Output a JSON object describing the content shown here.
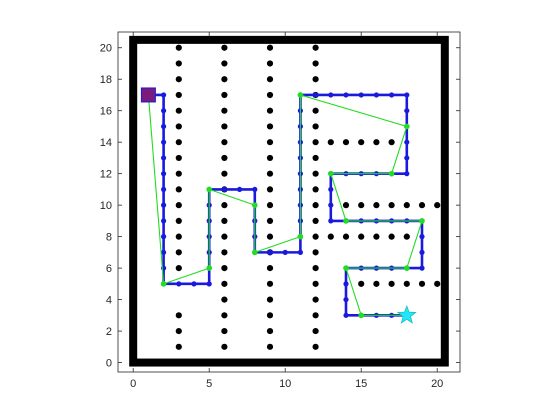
{
  "chart_data": {
    "type": "scatter",
    "title": "",
    "xlabel": "",
    "ylabel": "",
    "xlim": [
      -1,
      21.5
    ],
    "ylim": [
      -0.6,
      21
    ],
    "x_ticks": [
      "0",
      "5",
      "10",
      "15",
      "20"
    ],
    "y_ticks": [
      "0",
      "2",
      "4",
      "6",
      "8",
      "10",
      "12",
      "14",
      "16",
      "18",
      "20"
    ],
    "grid": false,
    "legend": "none",
    "colors": {
      "wall": "#000000",
      "obstacle": "#000000",
      "path": "#1a1adf",
      "path_node": "#1a1adf",
      "smoothed_path": "#22dd22",
      "waypoint": "#22dd22",
      "start_fill": "#7a1a7a",
      "start_edge": "#1a1adf",
      "goal": "#22e6f2"
    },
    "boundary": {
      "x": [
        0,
        20.5
      ],
      "y": [
        0,
        20.5
      ]
    },
    "start": {
      "x": 1,
      "y": 17,
      "marker": "square"
    },
    "goal": {
      "x": 18,
      "y": 3,
      "marker": "star"
    },
    "obstacle_columns": [
      {
        "x": 3,
        "y": [
          0,
          1,
          2,
          3,
          6,
          7,
          8,
          9,
          10,
          11,
          12,
          13,
          14,
          15,
          16,
          17,
          18,
          19,
          20
        ]
      },
      {
        "x": 6,
        "y": [
          0,
          1,
          2,
          3,
          4,
          5,
          6,
          7,
          8,
          9,
          10,
          11,
          12,
          13,
          14,
          15,
          16,
          17,
          18,
          19,
          20
        ]
      },
      {
        "x": 9,
        "y": [
          0,
          1,
          2,
          3,
          4,
          5,
          6,
          7,
          8,
          9,
          10,
          11,
          12,
          13,
          14,
          15,
          16,
          17,
          18,
          19,
          20
        ]
      },
      {
        "x": 12,
        "y": [
          0,
          1,
          2,
          3,
          4,
          5,
          6,
          7,
          8,
          9,
          10,
          11,
          12,
          13,
          14,
          15,
          16,
          17,
          18,
          19,
          20
        ]
      }
    ],
    "obstacle_rows": [
      {
        "y": 14,
        "x": [
          13,
          14,
          15,
          16,
          17
        ]
      },
      {
        "y": 10,
        "x": [
          14,
          15,
          16,
          17,
          18,
          19,
          20
        ]
      },
      {
        "y": 8,
        "x": [
          13,
          14,
          15,
          16,
          17,
          18
        ]
      },
      {
        "y": 5,
        "x": [
          15,
          16,
          17,
          18,
          19,
          20
        ]
      }
    ],
    "path": [
      [
        1,
        17
      ],
      [
        2,
        17
      ],
      [
        2,
        16
      ],
      [
        2,
        15
      ],
      [
        2,
        14
      ],
      [
        2,
        13
      ],
      [
        2,
        12
      ],
      [
        2,
        11
      ],
      [
        2,
        10
      ],
      [
        2,
        9
      ],
      [
        2,
        8
      ],
      [
        2,
        7
      ],
      [
        2,
        6
      ],
      [
        2,
        5
      ],
      [
        3,
        5
      ],
      [
        4,
        5
      ],
      [
        5,
        5
      ],
      [
        5,
        6
      ],
      [
        5,
        7
      ],
      [
        5,
        8
      ],
      [
        5,
        9
      ],
      [
        5,
        10
      ],
      [
        5,
        11
      ],
      [
        6,
        11
      ],
      [
        7,
        11
      ],
      [
        8,
        11
      ],
      [
        8,
        10
      ],
      [
        8,
        9
      ],
      [
        8,
        8
      ],
      [
        8,
        7
      ],
      [
        9,
        7
      ],
      [
        10,
        7
      ],
      [
        11,
        7
      ],
      [
        11,
        8
      ],
      [
        11,
        9
      ],
      [
        11,
        10
      ],
      [
        11,
        11
      ],
      [
        11,
        12
      ],
      [
        11,
        13
      ],
      [
        11,
        14
      ],
      [
        11,
        15
      ],
      [
        11,
        16
      ],
      [
        11,
        17
      ],
      [
        12,
        17
      ],
      [
        13,
        17
      ],
      [
        14,
        17
      ],
      [
        15,
        17
      ],
      [
        16,
        17
      ],
      [
        17,
        17
      ],
      [
        18,
        17
      ],
      [
        18,
        16
      ],
      [
        18,
        15
      ],
      [
        18,
        14
      ],
      [
        18,
        13
      ],
      [
        18,
        12
      ],
      [
        17,
        12
      ],
      [
        16,
        12
      ],
      [
        15,
        12
      ],
      [
        14,
        12
      ],
      [
        13,
        12
      ],
      [
        13,
        11
      ],
      [
        13,
        10
      ],
      [
        13,
        9
      ],
      [
        14,
        9
      ],
      [
        15,
        9
      ],
      [
        16,
        9
      ],
      [
        17,
        9
      ],
      [
        18,
        9
      ],
      [
        19,
        9
      ],
      [
        19,
        8
      ],
      [
        19,
        7
      ],
      [
        19,
        6
      ],
      [
        18,
        6
      ],
      [
        17,
        6
      ],
      [
        16,
        6
      ],
      [
        15,
        6
      ],
      [
        14,
        6
      ],
      [
        14,
        5
      ],
      [
        14,
        4
      ],
      [
        14,
        3
      ],
      [
        15,
        3
      ],
      [
        16,
        3
      ],
      [
        17,
        3
      ],
      [
        18,
        3
      ]
    ],
    "smoothed_path": [
      [
        1,
        17
      ],
      [
        2,
        5
      ],
      [
        5,
        6
      ],
      [
        5,
        11
      ],
      [
        8,
        10
      ],
      [
        8,
        7
      ],
      [
        11,
        8
      ],
      [
        11,
        17
      ],
      [
        18,
        15
      ],
      [
        17,
        12
      ],
      [
        13,
        12
      ],
      [
        14,
        9
      ],
      [
        19,
        9
      ],
      [
        18,
        6
      ],
      [
        14,
        6
      ],
      [
        15,
        3
      ],
      [
        18,
        3
      ]
    ]
  }
}
